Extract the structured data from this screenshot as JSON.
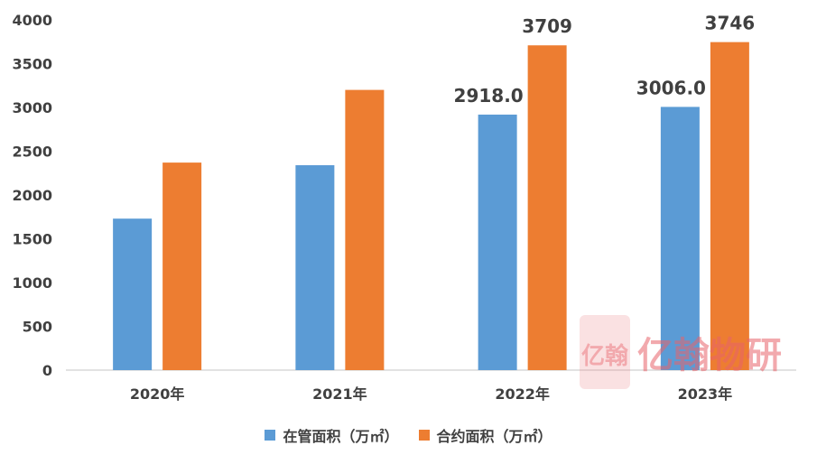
{
  "chart_data": {
    "type": "bar",
    "categories": [
      "2020年",
      "2021年",
      "2022年",
      "2023年"
    ],
    "series": [
      {
        "name": "在管面积（万㎡）",
        "values": [
          1730,
          2340,
          2918.0,
          3006.0
        ],
        "color": "#5b9bd5",
        "data_labels": [
          null,
          null,
          "2918.0",
          "3006.0"
        ]
      },
      {
        "name": "合约面积（万㎡）",
        "values": [
          2370,
          3200,
          3709,
          3746
        ],
        "color": "#ed7d31",
        "data_labels": [
          null,
          null,
          "3709",
          "3746"
        ]
      }
    ],
    "ylim": [
      0,
      4000
    ],
    "yticks": [
      "0",
      "500",
      "1000",
      "1500",
      "2000",
      "2500",
      "3000",
      "3500",
      "4000"
    ],
    "grid": false,
    "legend_position": "bottom"
  },
  "watermark": {
    "mark": "亿翰",
    "text": "亿翰物研",
    "color": "#e8636b"
  }
}
